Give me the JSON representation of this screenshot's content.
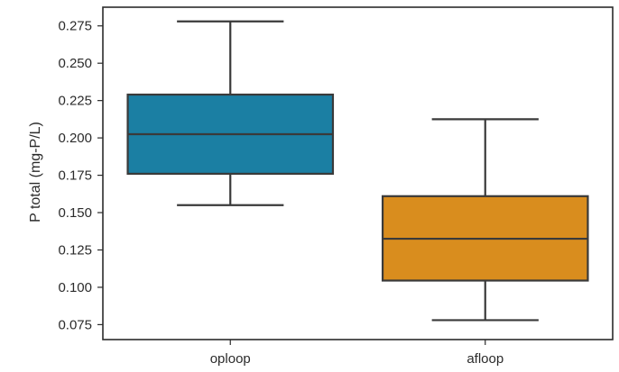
{
  "chart_data": {
    "type": "box",
    "title": "",
    "xlabel": "",
    "ylabel": "P total (mg-P/L)",
    "ylim": [
      0.065,
      0.2875
    ],
    "yticks": [
      0.075,
      0.1,
      0.125,
      0.15,
      0.175,
      0.2,
      0.225,
      0.25,
      0.275
    ],
    "ytick_labels": [
      "0.075",
      "0.100",
      "0.125",
      "0.150",
      "0.175",
      "0.200",
      "0.225",
      "0.250",
      "0.275"
    ],
    "grid": false,
    "categories": [
      "oploop",
      "afloop"
    ],
    "boxes": [
      {
        "category": "oploop",
        "whisker_low": 0.155,
        "q1": 0.176,
        "median": 0.2025,
        "q3": 0.229,
        "whisker_high": 0.278,
        "color": "#1b7fa3"
      },
      {
        "category": "afloop",
        "whisker_low": 0.078,
        "q1": 0.1045,
        "median": 0.1325,
        "q3": 0.161,
        "whisker_high": 0.2125,
        "color": "#d98d1e"
      }
    ]
  },
  "colors": {
    "axis": "#2b2b2b",
    "edge": "#3a3a3a",
    "text": "#2b2b2b"
  }
}
